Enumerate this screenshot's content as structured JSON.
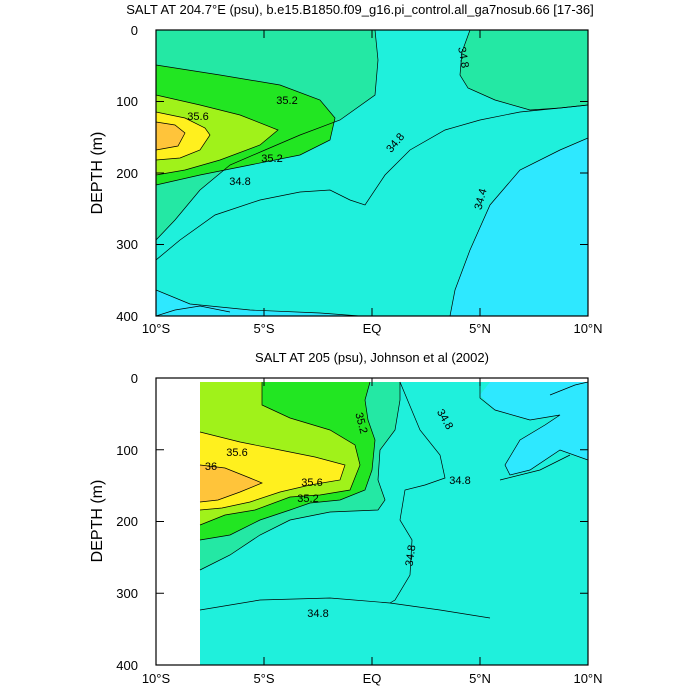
{
  "colors": {
    "lt_34_4": "#2ee8ff",
    "34_4_to_34_8": "#1ff0dc",
    "34_8_to_35_2": "#24e8a4",
    "35_2_to_35_6": "#22e622",
    "35_6_to_36": "#a0f21a",
    "gt_36": "#fff01e",
    "max": "#ffc43a",
    "land": "#ffffff"
  },
  "chart_data": [
    {
      "type": "heatmap",
      "title": "SALT AT 204.7°E (psu), b.e15.B1850.f09_g16.pi_control.all_ga7nosub.66 [17-36]",
      "xlabel": "",
      "ylabel": "DEPTH (m)",
      "x_ticks": [
        "10°S",
        "5°S",
        "EQ",
        "5°N",
        "10°N"
      ],
      "y_ticks": [
        "0",
        "100",
        "200",
        "300",
        "400"
      ],
      "xlim": [
        -10,
        10
      ],
      "ylim": [
        400,
        0
      ],
      "contour_labels": [
        "35.6",
        "35.2",
        "35.2",
        "34.8",
        "34.8",
        "34.8",
        "34.4"
      ]
    },
    {
      "type": "heatmap",
      "title": "SALT AT 205 (psu), Johnson et al (2002)",
      "xlabel": "",
      "ylabel": "DEPTH (m)",
      "x_ticks": [
        "10°S",
        "5°S",
        "EQ",
        "5°N",
        "10°N"
      ],
      "y_ticks": [
        "0",
        "100",
        "200",
        "300",
        "400"
      ],
      "xlim": [
        -10,
        10
      ],
      "ylim": [
        400,
        0
      ],
      "contour_labels": [
        "35.6",
        "36",
        "35.6",
        "35.2",
        "35.2",
        "34.8",
        "34.8",
        "34.8",
        "34.8"
      ]
    }
  ]
}
